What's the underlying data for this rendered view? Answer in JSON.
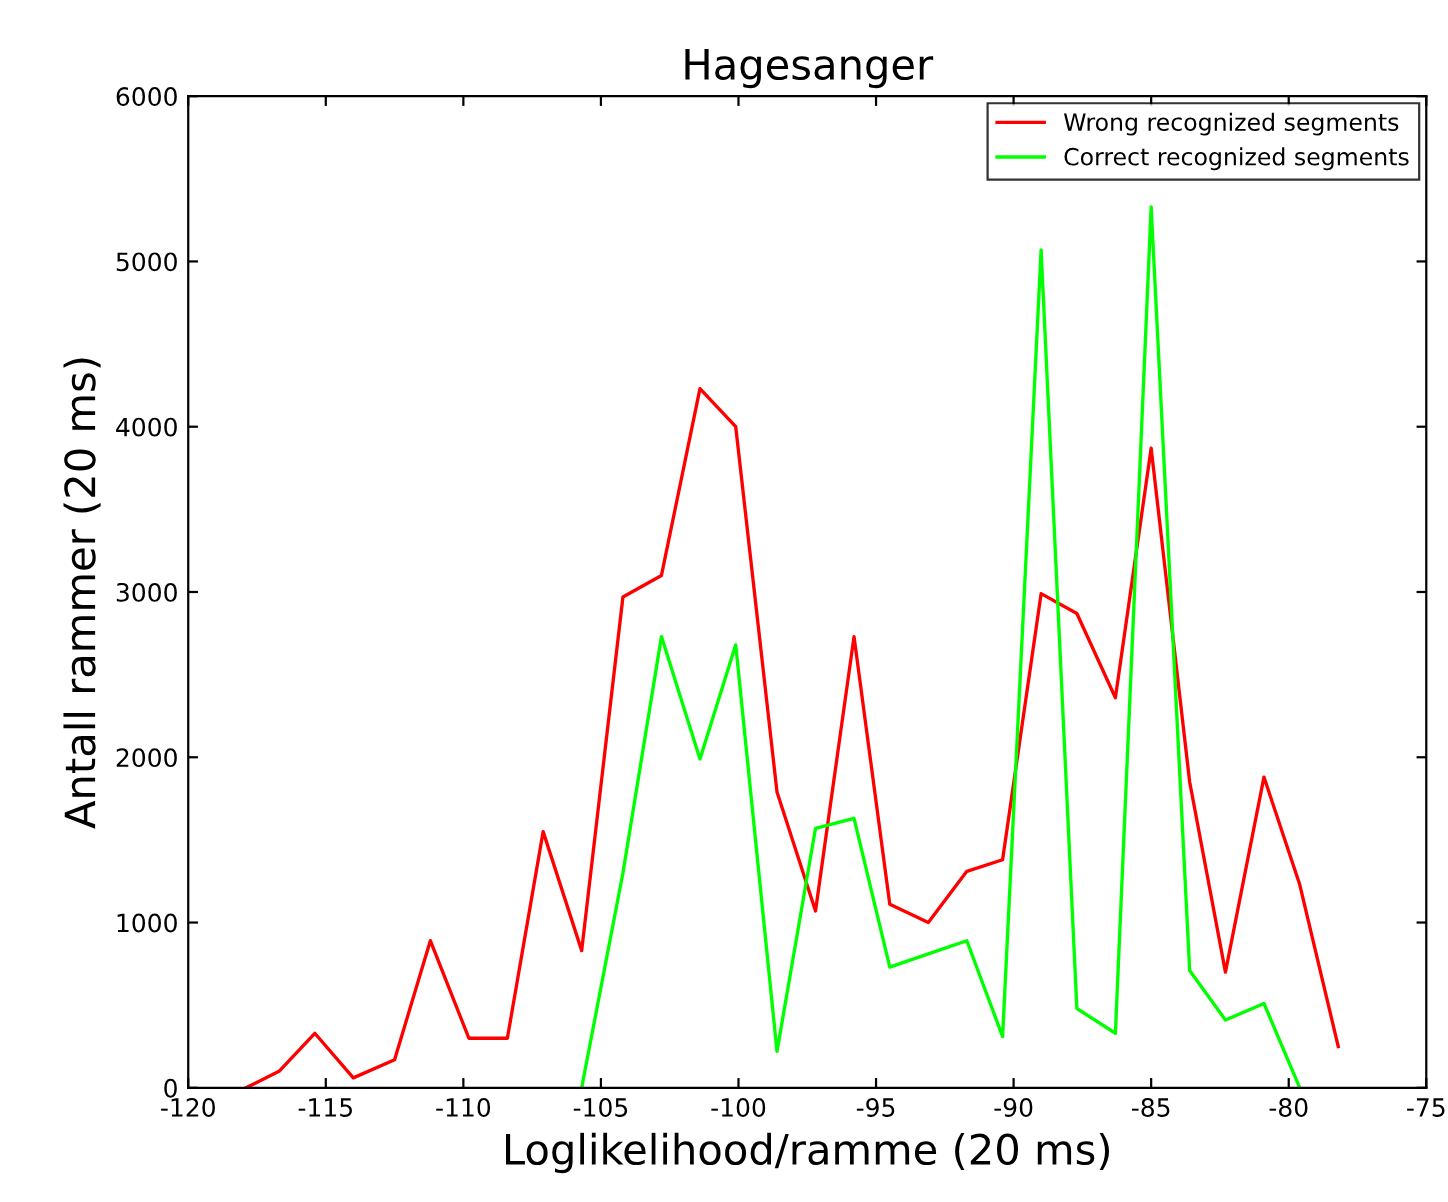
{
  "chart_data": {
    "type": "line",
    "title": "Hagesanger",
    "xlabel": "Loglikelihood/ramme (20 ms)",
    "ylabel": "Antall rammer (20 ms)",
    "xlim": [
      -120,
      -75
    ],
    "xticks": [
      -120,
      -115,
      -110,
      -105,
      -100,
      -95,
      -90,
      -85,
      -80,
      -75
    ],
    "ylim": [
      0,
      6000
    ],
    "yticks": [
      0,
      1000,
      2000,
      3000,
      4000,
      5000,
      6000
    ],
    "grid": false,
    "legend": "top right",
    "marker": "none",
    "line_style": "solid",
    "series": [
      {
        "name": "Wrong recognized segments",
        "color": "#ff0000",
        "x": [
          -117.9,
          -116.7,
          -115.4,
          -114.0,
          -112.5,
          -111.2,
          -109.8,
          -108.4,
          -107.1,
          -105.7,
          -104.2,
          -102.8,
          -101.4,
          -100.1,
          -98.6,
          -97.2,
          -95.8,
          -94.5,
          -93.1,
          -91.7,
          -90.4,
          -89.0,
          -87.7,
          -86.3,
          -85.0,
          -83.6,
          -82.3,
          -80.9,
          -79.6,
          -78.2
        ],
        "values": [
          0,
          100,
          330,
          60,
          170,
          890,
          300,
          300,
          1550,
          830,
          2970,
          3100,
          4230,
          4000,
          1790,
          1070,
          2730,
          1110,
          1000,
          1310,
          1380,
          2990,
          2870,
          2360,
          3870,
          1850,
          700,
          1880,
          1230,
          250
        ]
      },
      {
        "name": "Correct recognized segments",
        "color": "#00ff00",
        "x": [
          -105.7,
          -104.2,
          -102.8,
          -101.4,
          -100.1,
          -98.6,
          -97.2,
          -95.8,
          -94.5,
          -93.1,
          -91.7,
          -90.4,
          -89.0,
          -87.7,
          -86.3,
          -85.0,
          -83.6,
          -82.3,
          -80.9,
          -79.6
        ],
        "values": [
          0,
          1300,
          2730,
          1990,
          2680,
          220,
          1570,
          1630,
          730,
          810,
          890,
          310,
          5070,
          480,
          330,
          5330,
          710,
          410,
          510,
          0
        ]
      }
    ]
  }
}
